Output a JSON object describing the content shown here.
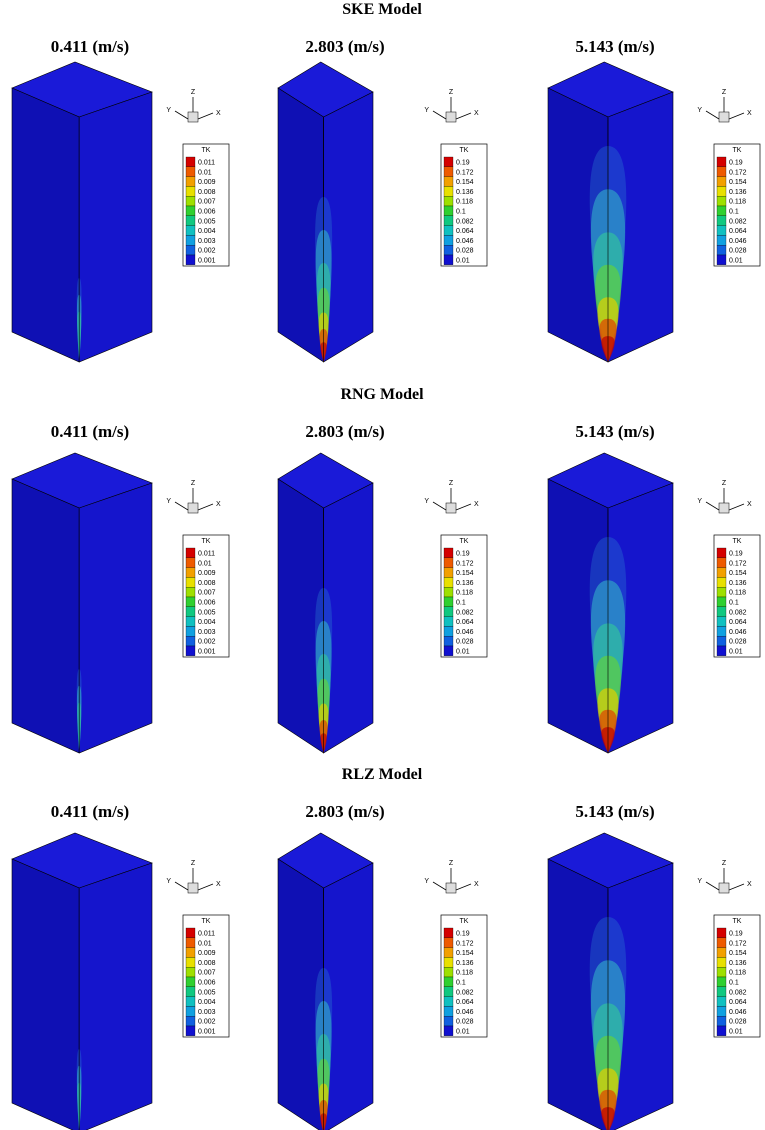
{
  "rows": [
    {
      "title": "SKE Model",
      "panels": [
        {
          "label": "0.411 (m/s)",
          "legend": {
            "title": "TK",
            "levels": [
              "0.011",
              "0.01",
              "0.009",
              "0.008",
              "0.007",
              "0.006",
              "0.005",
              "0.004",
              "0.003",
              "0.002",
              "0.001"
            ]
          },
          "axes": {
            "z": "Z",
            "y": "Y",
            "x": "X"
          }
        },
        {
          "label": "2.803 (m/s)",
          "legend": {
            "title": "TK",
            "levels": [
              "0.19",
              "0.172",
              "0.154",
              "0.136",
              "0.118",
              "0.1",
              "0.082",
              "0.064",
              "0.046",
              "0.028",
              "0.01"
            ]
          },
          "axes": {
            "z": "Z",
            "y": "Y",
            "x": "X"
          }
        },
        {
          "label": "5.143 (m/s)",
          "legend": {
            "title": "TK",
            "levels": [
              "0.19",
              "0.172",
              "0.154",
              "0.136",
              "0.118",
              "0.1",
              "0.082",
              "0.064",
              "0.046",
              "0.028",
              "0.01"
            ]
          },
          "axes": {
            "z": "Z",
            "y": "Y",
            "x": "X"
          }
        }
      ]
    },
    {
      "title": "RNG Model",
      "panels": [
        {
          "label": "0.411 (m/s)",
          "legend": {
            "title": "TK",
            "levels": [
              "0.011",
              "0.01",
              "0.009",
              "0.008",
              "0.007",
              "0.006",
              "0.005",
              "0.004",
              "0.003",
              "0.002",
              "0.001"
            ]
          },
          "axes": {
            "z": "Z",
            "y": "Y",
            "x": "X"
          }
        },
        {
          "label": "2.803 (m/s)",
          "legend": {
            "title": "TK",
            "levels": [
              "0.19",
              "0.172",
              "0.154",
              "0.136",
              "0.118",
              "0.1",
              "0.082",
              "0.064",
              "0.046",
              "0.028",
              "0.01"
            ]
          },
          "axes": {
            "z": "Z",
            "y": "Y",
            "x": "X"
          }
        },
        {
          "label": "5.143 (m/s)",
          "legend": {
            "title": "TK",
            "levels": [
              "0.19",
              "0.172",
              "0.154",
              "0.136",
              "0.118",
              "0.1",
              "0.082",
              "0.064",
              "0.046",
              "0.028",
              "0.01"
            ]
          },
          "axes": {
            "z": "Z",
            "y": "Y",
            "x": "X"
          }
        }
      ]
    },
    {
      "title": "RLZ Model",
      "panels": [
        {
          "label": "0.411 (m/s)",
          "legend": {
            "title": "TK",
            "levels": [
              "0.011",
              "0.01",
              "0.009",
              "0.008",
              "0.007",
              "0.006",
              "0.005",
              "0.004",
              "0.003",
              "0.002",
              "0.001"
            ]
          },
          "axes": {
            "z": "Z",
            "y": "Y",
            "x": "X"
          }
        },
        {
          "label": "2.803 (m/s)",
          "legend": {
            "title": "TK",
            "levels": [
              "0.19",
              "0.172",
              "0.154",
              "0.136",
              "0.118",
              "0.1",
              "0.082",
              "0.064",
              "0.046",
              "0.028",
              "0.01"
            ]
          },
          "axes": {
            "z": "Z",
            "y": "Y",
            "x": "X"
          }
        },
        {
          "label": "5.143 (m/s)",
          "legend": {
            "title": "TK",
            "levels": [
              "0.19",
              "0.172",
              "0.154",
              "0.136",
              "0.118",
              "0.1",
              "0.082",
              "0.064",
              "0.046",
              "0.028",
              "0.01"
            ]
          },
          "axes": {
            "z": "Z",
            "y": "Y",
            "x": "X"
          }
        }
      ]
    }
  ]
}
